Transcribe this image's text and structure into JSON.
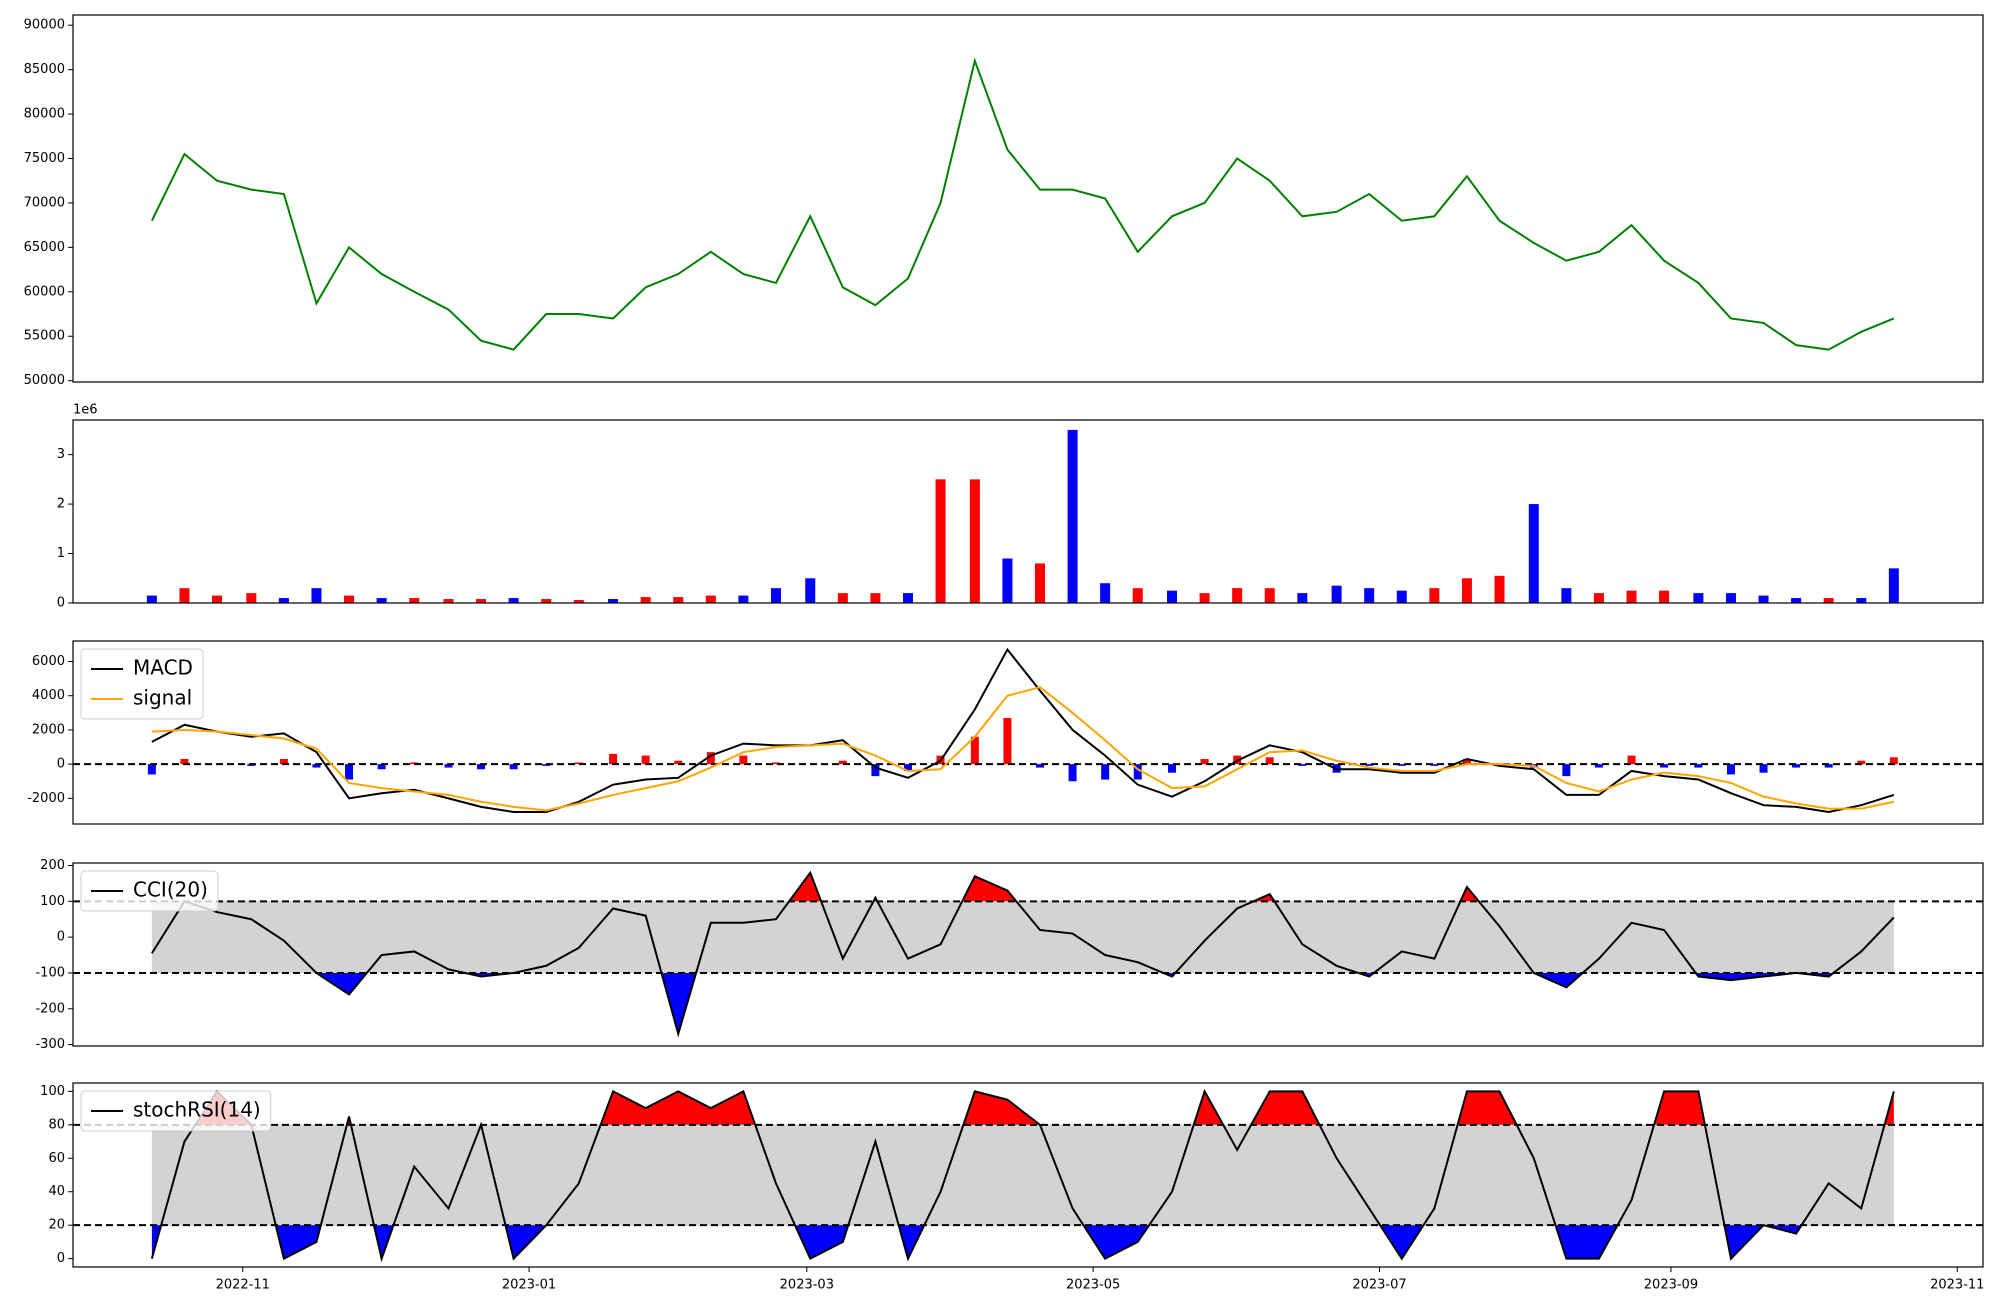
{
  "chart_data": [
    {
      "type": "line",
      "x": [
        2022.78,
        2022.799,
        2022.818,
        2022.838,
        2022.857,
        2022.876,
        2022.895,
        2022.914,
        2022.933,
        2022.953,
        2022.972,
        2022.991,
        2023.01,
        2023.029,
        2023.049,
        2023.068,
        2023.087,
        2023.106,
        2023.125,
        2023.144,
        2023.164,
        2023.183,
        2023.202,
        2023.221,
        2023.24,
        2023.26,
        2023.279,
        2023.298,
        2023.317,
        2023.336,
        2023.355,
        2023.375,
        2023.394,
        2023.413,
        2023.432,
        2023.451,
        2023.471,
        2023.49,
        2023.509,
        2023.528,
        2023.547,
        2023.566,
        2023.586,
        2023.605,
        2023.624,
        2023.643,
        2023.662,
        2023.682,
        2023.701,
        2023.72,
        2023.739,
        2023.758,
        2023.777,
        2023.796
      ],
      "series": [
        {
          "color": "green",
          "values": [
            68000,
            75500,
            72500,
            71500,
            71000,
            58700,
            65000,
            62000,
            60000,
            58000,
            54500,
            53500,
            57500,
            57500,
            57000,
            60500,
            62000,
            64500,
            62000,
            61000,
            68500,
            60500,
            58500,
            61500,
            70000,
            86000,
            76000,
            71500,
            71500,
            70500,
            64500,
            68500,
            70000,
            75000,
            72500,
            68500,
            69000,
            71000,
            68000,
            68500,
            73000,
            68000,
            65500,
            63500,
            64500,
            67500,
            63500,
            61000,
            57000,
            56500,
            54000,
            53500,
            55500,
            57000
          ]
        }
      ],
      "xlim": [
        2022.734,
        2023.848
      ],
      "ylim": [
        49850,
        91150
      ],
      "yticks": [
        50000,
        55000,
        60000,
        65000,
        70000,
        75000,
        80000,
        85000,
        90000
      ]
    },
    {
      "type": "bar",
      "x": [
        2022.78,
        2022.799,
        2022.818,
        2022.838,
        2022.857,
        2022.876,
        2022.895,
        2022.914,
        2022.933,
        2022.953,
        2022.972,
        2022.991,
        2023.01,
        2023.029,
        2023.049,
        2023.068,
        2023.087,
        2023.106,
        2023.125,
        2023.144,
        2023.164,
        2023.183,
        2023.202,
        2023.221,
        2023.24,
        2023.26,
        2023.279,
        2023.298,
        2023.317,
        2023.336,
        2023.355,
        2023.375,
        2023.394,
        2023.413,
        2023.432,
        2023.451,
        2023.471,
        2023.49,
        2023.509,
        2023.528,
        2023.547,
        2023.566,
        2023.586,
        2023.605,
        2023.624,
        2023.643,
        2023.662,
        2023.682,
        2023.701,
        2023.72,
        2023.739,
        2023.758,
        2023.777,
        2023.796
      ],
      "values": [
        0.15,
        0.3,
        0.15,
        0.2,
        0.1,
        0.3,
        0.15,
        0.1,
        0.1,
        0.08,
        0.08,
        0.1,
        0.08,
        0.06,
        0.08,
        0.12,
        0.12,
        0.15,
        0.15,
        0.3,
        0.5,
        0.2,
        0.2,
        0.2,
        2.5,
        2.5,
        0.9,
        0.8,
        3.5,
        0.4,
        0.3,
        0.25,
        0.2,
        0.3,
        0.3,
        0.2,
        0.35,
        0.3,
        0.25,
        0.3,
        0.5,
        0.55,
        2.0,
        0.3,
        0.2,
        0.25,
        0.25,
        0.2,
        0.2,
        0.15,
        0.1,
        0.1,
        0.1,
        0.7
      ],
      "colors": [
        "blue",
        "red",
        "red",
        "red",
        "blue",
        "blue",
        "red",
        "blue",
        "red",
        "red",
        "red",
        "blue",
        "red",
        "red",
        "blue",
        "red",
        "red",
        "red",
        "blue",
        "blue",
        "blue",
        "red",
        "red",
        "blue",
        "red",
        "red",
        "blue",
        "red",
        "blue",
        "blue",
        "red",
        "blue",
        "red",
        "red",
        "red",
        "blue",
        "blue",
        "blue",
        "blue",
        "red",
        "red",
        "red",
        "blue",
        "blue",
        "red",
        "red",
        "red",
        "blue",
        "blue",
        "blue",
        "blue",
        "red",
        "blue",
        "blue"
      ],
      "xlim": [
        2022.734,
        2023.848
      ],
      "ylim": [
        0,
        3.7
      ],
      "yticks": [
        0,
        1,
        2,
        3
      ],
      "offset_label": "1e6"
    },
    {
      "type": "line",
      "x": [
        2022.78,
        2022.799,
        2022.818,
        2022.838,
        2022.857,
        2022.876,
        2022.895,
        2022.914,
        2022.933,
        2022.953,
        2022.972,
        2022.991,
        2023.01,
        2023.029,
        2023.049,
        2023.068,
        2023.087,
        2023.106,
        2023.125,
        2023.144,
        2023.164,
        2023.183,
        2023.202,
        2023.221,
        2023.24,
        2023.26,
        2023.279,
        2023.298,
        2023.317,
        2023.336,
        2023.355,
        2023.375,
        2023.394,
        2023.413,
        2023.432,
        2023.451,
        2023.471,
        2023.49,
        2023.509,
        2023.528,
        2023.547,
        2023.566,
        2023.586,
        2023.605,
        2023.624,
        2023.643,
        2023.662,
        2023.682,
        2023.701,
        2023.72,
        2023.739,
        2023.758,
        2023.777,
        2023.796
      ],
      "series": [
        {
          "name": "MACD",
          "color": "black",
          "values": [
            1300,
            2300,
            1900,
            1600,
            1800,
            700,
            -2000,
            -1700,
            -1500,
            -2000,
            -2500,
            -2800,
            -2800,
            -2200,
            -1200,
            -900,
            -800,
            500,
            1200,
            1100,
            1100,
            1400,
            -200,
            -800,
            200,
            3200,
            6700,
            4300,
            2000,
            500,
            -1200,
            -1900,
            -1000,
            200,
            1100,
            700,
            -300,
            -300,
            -500,
            -500,
            300,
            -100,
            -300,
            -1800,
            -1800,
            -400,
            -700,
            -900,
            -1700,
            -2400,
            -2500,
            -2800,
            -2400,
            -1800
          ]
        },
        {
          "name": "signal",
          "color": "orange",
          "values": [
            1900,
            2000,
            1900,
            1700,
            1500,
            900,
            -1100,
            -1400,
            -1600,
            -1800,
            -2200,
            -2500,
            -2700,
            -2300,
            -1800,
            -1400,
            -1000,
            -200,
            700,
            1000,
            1100,
            1200,
            500,
            -400,
            -300,
            1600,
            4000,
            4500,
            3000,
            1400,
            -300,
            -1400,
            -1300,
            -300,
            700,
            800,
            200,
            -200,
            -400,
            -400,
            0,
            0,
            -100,
            -1100,
            -1600,
            -900,
            -500,
            -700,
            -1100,
            -1900,
            -2300,
            -2600,
            -2600,
            -2200
          ]
        }
      ],
      "histogram": {
        "values": [
          -600,
          300,
          0,
          -100,
          300,
          -200,
          -900,
          -300,
          100,
          -200,
          -300,
          -300,
          -100,
          100,
          600,
          500,
          200,
          700,
          500,
          100,
          0,
          200,
          -700,
          -400,
          500,
          1600,
          2700,
          -200,
          -1000,
          -900,
          -900,
          -500,
          300,
          500,
          400,
          -100,
          -500,
          -100,
          -100,
          -100,
          300,
          -100,
          -200,
          -700,
          -200,
          500,
          -200,
          -200,
          -600,
          -500,
          -200,
          -200,
          200,
          400
        ],
        "positive_color": "red",
        "negative_color": "blue"
      },
      "levels": [
        0
      ],
      "xlim": [
        2022.734,
        2023.848
      ],
      "ylim": [
        -3500,
        7200
      ],
      "yticks": [
        -2000,
        0,
        2000,
        4000,
        6000
      ],
      "legend": "upper left"
    },
    {
      "type": "line",
      "x": [
        2022.78,
        2022.799,
        2022.818,
        2022.838,
        2022.857,
        2022.876,
        2022.895,
        2022.914,
        2022.933,
        2022.953,
        2022.972,
        2022.991,
        2023.01,
        2023.029,
        2023.049,
        2023.068,
        2023.087,
        2023.106,
        2023.125,
        2023.144,
        2023.164,
        2023.183,
        2023.202,
        2023.221,
        2023.24,
        2023.26,
        2023.279,
        2023.298,
        2023.317,
        2023.336,
        2023.355,
        2023.375,
        2023.394,
        2023.413,
        2023.432,
        2023.451,
        2023.471,
        2023.49,
        2023.509,
        2023.528,
        2023.547,
        2023.566,
        2023.586,
        2023.605,
        2023.624,
        2023.643,
        2023.662,
        2023.682,
        2023.701,
        2023.72,
        2023.739,
        2023.758,
        2023.777,
        2023.796
      ],
      "series": [
        {
          "name": "CCI(20)",
          "color": "black",
          "values": [
            -45,
            100,
            70,
            50,
            -10,
            -100,
            -160,
            -50,
            -40,
            -90,
            -110,
            -100,
            -80,
            -30,
            80,
            60,
            -270,
            40,
            40,
            50,
            180,
            -60,
            110,
            -60,
            -20,
            170,
            130,
            20,
            10,
            -50,
            -70,
            -110,
            -10,
            80,
            120,
            -20,
            -80,
            -110,
            -40,
            -60,
            140,
            30,
            -100,
            -140,
            -60,
            40,
            20,
            -110,
            -120,
            -110,
            -100,
            -110,
            -40,
            55
          ]
        }
      ],
      "levels": [
        -100,
        100
      ],
      "band_color": "lightgray",
      "fill_above": "red",
      "fill_below": "blue",
      "xlim": [
        2022.734,
        2023.848
      ],
      "ylim": [
        -304,
        207
      ],
      "yticks": [
        -300,
        -200,
        -100,
        0,
        100,
        200
      ],
      "legend": "upper left"
    },
    {
      "type": "line",
      "x": [
        2022.78,
        2022.799,
        2022.818,
        2022.838,
        2022.857,
        2022.876,
        2022.895,
        2022.914,
        2022.933,
        2022.953,
        2022.972,
        2022.991,
        2023.01,
        2023.029,
        2023.049,
        2023.068,
        2023.087,
        2023.106,
        2023.125,
        2023.144,
        2023.164,
        2023.183,
        2023.202,
        2023.221,
        2023.24,
        2023.26,
        2023.279,
        2023.298,
        2023.317,
        2023.336,
        2023.355,
        2023.375,
        2023.394,
        2023.413,
        2023.432,
        2023.451,
        2023.471,
        2023.49,
        2023.509,
        2023.528,
        2023.547,
        2023.566,
        2023.586,
        2023.605,
        2023.624,
        2023.643,
        2023.662,
        2023.682,
        2023.701,
        2023.72,
        2023.739,
        2023.758,
        2023.777,
        2023.796
      ],
      "series": [
        {
          "name": "stochRSI(14)",
          "color": "black",
          "values": [
            0,
            70,
            100,
            80,
            0,
            10,
            85,
            0,
            55,
            30,
            80,
            0,
            20,
            45,
            100,
            90,
            100,
            90,
            100,
            45,
            0,
            10,
            70,
            0,
            40,
            100,
            95,
            80,
            30,
            0,
            10,
            40,
            100,
            65,
            100,
            100,
            60,
            30,
            0,
            30,
            100,
            100,
            60,
            0,
            0,
            35,
            100,
            100,
            0,
            20,
            15,
            45,
            30,
            100
          ]
        }
      ],
      "levels": [
        20,
        80
      ],
      "band_color": "lightgray",
      "fill_above": "red",
      "fill_below": "blue",
      "xlim": [
        2022.734,
        2023.848
      ],
      "ylim": [
        -5,
        105
      ],
      "yticks": [
        0,
        20,
        40,
        60,
        80,
        100
      ],
      "legend": "upper left",
      "xticks": [
        {
          "value": 2022.833,
          "label": "2022-11"
        },
        {
          "value": 2023.0,
          "label": "2023-01"
        },
        {
          "value": 2023.162,
          "label": "2023-03"
        },
        {
          "value": 2023.329,
          "label": "2023-05"
        },
        {
          "value": 2023.496,
          "label": "2023-07"
        },
        {
          "value": 2023.666,
          "label": "2023-09"
        },
        {
          "value": 2023.833,
          "label": "2023-11"
        }
      ]
    }
  ]
}
